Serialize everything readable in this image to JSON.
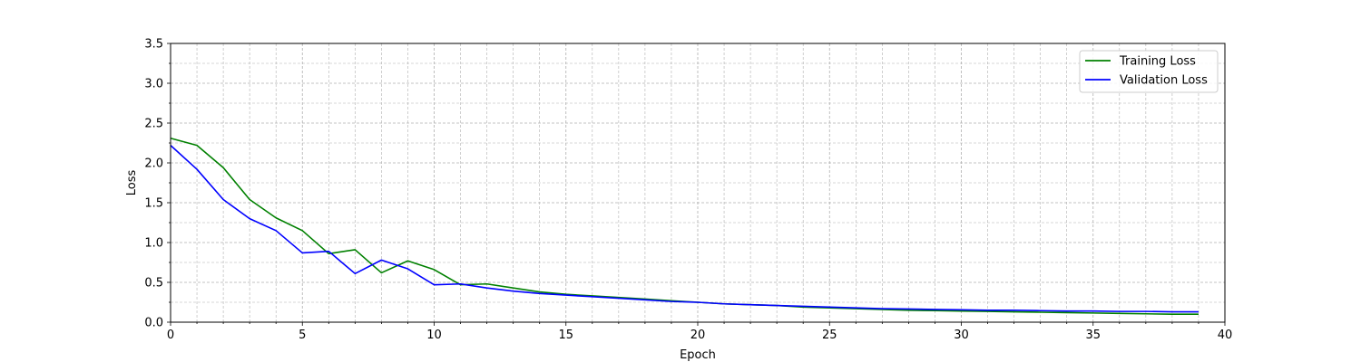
{
  "chart_data": {
    "type": "line",
    "title": "",
    "xlabel": "Epoch",
    "ylabel": "Loss",
    "xlim": [
      0,
      40
    ],
    "ylim": [
      0,
      3.5
    ],
    "xticks": [
      "0",
      "5",
      "10",
      "15",
      "20",
      "25",
      "30",
      "35",
      "40"
    ],
    "yticks": [
      "0.0",
      "0.5",
      "1.0",
      "1.5",
      "2.0",
      "2.5",
      "3.0",
      "3.5"
    ],
    "grid": true,
    "grid_minor": true,
    "legend_position": "top-right",
    "x": [
      0,
      1,
      2,
      3,
      4,
      5,
      6,
      7,
      8,
      9,
      10,
      11,
      12,
      13,
      14,
      15,
      16,
      17,
      18,
      19,
      20,
      21,
      22,
      23,
      24,
      25,
      26,
      27,
      28,
      29,
      30,
      31,
      32,
      33,
      34,
      35,
      36,
      37,
      38,
      39
    ],
    "series": [
      {
        "name": "Training Loss",
        "color": "#008000",
        "values": [
          2.31,
          2.22,
          1.94,
          1.54,
          1.31,
          1.15,
          0.86,
          0.91,
          0.62,
          0.77,
          0.66,
          0.47,
          0.48,
          0.43,
          0.38,
          0.35,
          0.33,
          0.31,
          0.29,
          0.27,
          0.25,
          0.23,
          0.22,
          0.21,
          0.19,
          0.18,
          0.17,
          0.16,
          0.15,
          0.145,
          0.14,
          0.135,
          0.13,
          0.125,
          0.12,
          0.115,
          0.11,
          0.105,
          0.1,
          0.1
        ]
      },
      {
        "name": "Validation Loss",
        "color": "#0000ff",
        "values": [
          2.22,
          1.92,
          1.54,
          1.3,
          1.15,
          0.87,
          0.89,
          0.61,
          0.78,
          0.67,
          0.47,
          0.48,
          0.43,
          0.39,
          0.36,
          0.34,
          0.32,
          0.3,
          0.28,
          0.26,
          0.25,
          0.23,
          0.22,
          0.21,
          0.2,
          0.19,
          0.18,
          0.17,
          0.165,
          0.16,
          0.155,
          0.15,
          0.15,
          0.145,
          0.14,
          0.14,
          0.135,
          0.135,
          0.13,
          0.13
        ]
      }
    ]
  }
}
